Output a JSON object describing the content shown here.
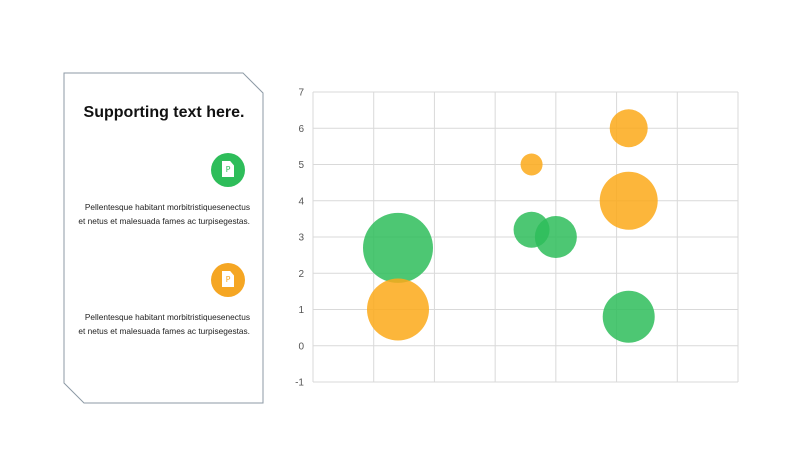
{
  "card": {
    "title": "Supporting text here.",
    "items": [
      {
        "icon": "document-icon",
        "icon_glyph": "P",
        "color": "#2ebd5a",
        "text_line1": "Pellentesque habitant morbitristiquesenectus",
        "text_line2": "et netus et malesuada fames ac turpisegestas."
      },
      {
        "icon": "document-icon",
        "icon_glyph": "P",
        "color": "#f5a623",
        "text_line1": "Pellentesque habitant morbitristiquesenectus",
        "text_line2": "et netus et malesuada fames ac turpisegestas."
      }
    ]
  },
  "chart_data": {
    "type": "scatter",
    "title": "",
    "xlabel": "",
    "ylabel": "",
    "ylim": [
      -1,
      7
    ],
    "xlim": [
      0,
      7
    ],
    "yticks": [
      -1,
      0,
      1,
      2,
      3,
      4,
      5,
      6,
      7
    ],
    "grid": true,
    "series": [
      {
        "color": "#2ebd5a",
        "points": [
          {
            "x": 1.4,
            "y": 2.7,
            "size": 35
          },
          {
            "x": 3.6,
            "y": 3.2,
            "size": 18
          },
          {
            "x": 4.0,
            "y": 3.0,
            "size": 21
          },
          {
            "x": 5.2,
            "y": 0.8,
            "size": 26
          }
        ]
      },
      {
        "color": "#fba919",
        "points": [
          {
            "x": 1.4,
            "y": 1.0,
            "size": 31
          },
          {
            "x": 3.6,
            "y": 5.0,
            "size": 11
          },
          {
            "x": 5.2,
            "y": 4.0,
            "size": 29
          },
          {
            "x": 5.2,
            "y": 6.0,
            "size": 19
          }
        ]
      }
    ]
  }
}
